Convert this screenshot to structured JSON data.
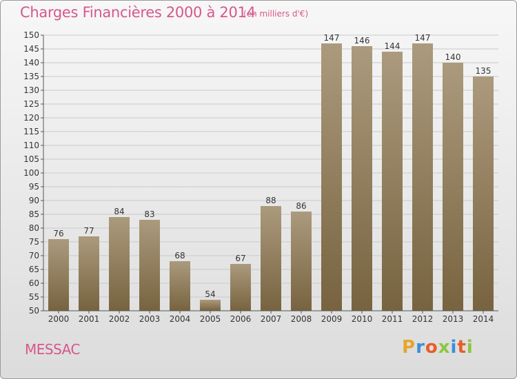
{
  "title": "Charges Financières 2000 à 2014",
  "subtitle": "(en milliers d'€)",
  "city": "MESSAC",
  "logo": {
    "letters": [
      "P",
      "r",
      "o",
      "x",
      "i",
      "t",
      "i"
    ],
    "colors": [
      "#e8a52c",
      "#3b8fd6",
      "#e85d2a",
      "#8cc63f",
      "#3b8fd6",
      "#e85d2a",
      "#8cc63f"
    ]
  },
  "colors": {
    "bar_top": "#ab9a7d",
    "bar_bottom": "#77633f",
    "grid": "#c9c9c9",
    "accent": "#d6578a"
  },
  "chart_data": {
    "type": "bar",
    "categories": [
      "2000",
      "2001",
      "2002",
      "2003",
      "2004",
      "2005",
      "2006",
      "2007",
      "2008",
      "2009",
      "2010",
      "2011",
      "2012",
      "2013",
      "2014"
    ],
    "values": [
      76,
      77,
      84,
      83,
      68,
      54,
      67,
      88,
      86,
      147,
      146,
      144,
      147,
      140,
      135
    ],
    "ylim": [
      50,
      150
    ],
    "yticks": [
      50,
      55,
      60,
      65,
      70,
      75,
      80,
      85,
      90,
      95,
      100,
      105,
      110,
      115,
      120,
      125,
      130,
      135,
      140,
      145,
      150
    ],
    "grid": true
  }
}
